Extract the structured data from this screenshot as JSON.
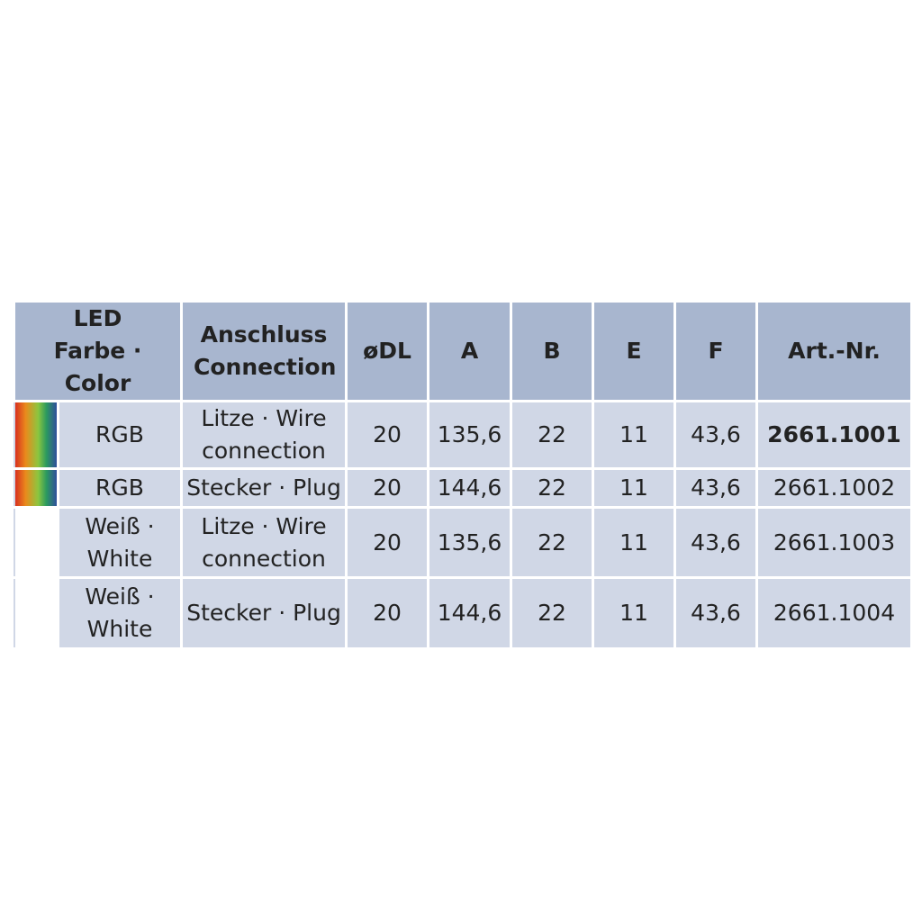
{
  "table": {
    "header": [
      "LED Farbe · Color",
      "Anschluss Connection",
      "øDL",
      "A",
      "B",
      "E",
      "F",
      "Art.-Nr."
    ],
    "rows": [
      [
        "RGB",
        "Litze · Wire connection",
        "20",
        "135,6",
        "22",
        "11",
        "43,6",
        "2661.1001"
      ],
      [
        "RGB",
        "Stecker · Plug",
        "20",
        "144,6",
        "22",
        "11",
        "43,6",
        "2661.1002"
      ],
      [
        "Weiß · White",
        "Litze · Wire connection",
        "20",
        "135,6",
        "22",
        "11",
        "43,6",
        "2661.1003"
      ],
      [
        "Weiß · White",
        "Stecker · Plug",
        "20",
        "144,6",
        "22",
        "11",
        "43,6",
        "2661.1004"
      ]
    ]
  }
}
